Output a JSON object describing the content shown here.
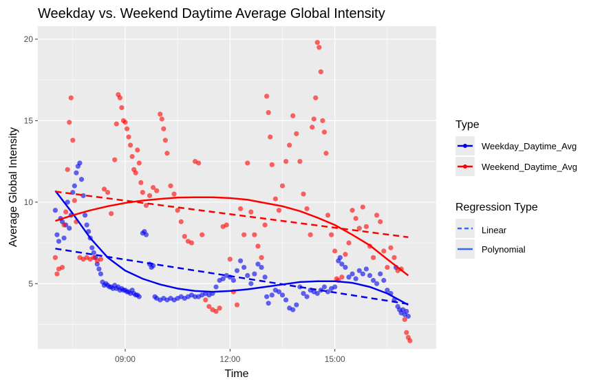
{
  "chart_data": {
    "type": "scatter",
    "title": "Weekday vs. Weekend Daytime Average Global Intensity",
    "xlabel": "Time",
    "ylabel": "Average Global Intensity",
    "x_unit": "hours",
    "xlim": [
      6.5,
      17.9
    ],
    "ylim": [
      1.0,
      20.8
    ],
    "x_ticks": [
      9,
      12,
      15
    ],
    "x_tick_labels": [
      "09:00",
      "12:00",
      "15:00"
    ],
    "y_ticks": [
      5,
      10,
      15,
      20
    ],
    "y_tick_labels": [
      "5",
      "10",
      "15",
      "20"
    ],
    "grid": true,
    "legend_placement": "right",
    "legend": {
      "type_title": "Type",
      "type_entries": [
        {
          "label": "Weekday_Daytime_Avg",
          "color": "#0000ee"
        },
        {
          "label": "Weekend_Daytime_Avg",
          "color": "#ff0000"
        }
      ],
      "regression_title": "Regression Type",
      "regression_entries": [
        {
          "label": "Linear",
          "style": "dashed"
        },
        {
          "label": "Polynomial",
          "style": "solid"
        }
      ]
    },
    "series": [
      {
        "name": "Weekday_Daytime_Avg",
        "color": "#0000ee",
        "points": [
          [
            7.0,
            9.5
          ],
          [
            7.05,
            8.0
          ],
          [
            7.1,
            7.6
          ],
          [
            7.15,
            9.0
          ],
          [
            7.2,
            8.8
          ],
          [
            7.25,
            7.8
          ],
          [
            7.3,
            8.6
          ],
          [
            7.35,
            10.0
          ],
          [
            7.4,
            8.4
          ],
          [
            7.45,
            9.2
          ],
          [
            7.5,
            10.6
          ],
          [
            7.55,
            11.0
          ],
          [
            7.6,
            11.8
          ],
          [
            7.65,
            12.2
          ],
          [
            7.7,
            12.4
          ],
          [
            7.75,
            11.4
          ],
          [
            7.8,
            10.4
          ],
          [
            7.85,
            9.2
          ],
          [
            7.9,
            8.6
          ],
          [
            7.95,
            8.2
          ],
          [
            8.0,
            7.8
          ],
          [
            8.05,
            7.2
          ],
          [
            8.1,
            6.9
          ],
          [
            8.15,
            6.6
          ],
          [
            8.2,
            6.2
          ],
          [
            8.25,
            5.9
          ],
          [
            8.3,
            5.6
          ],
          [
            8.35,
            5.1
          ],
          [
            8.4,
            4.9
          ],
          [
            8.45,
            5.0
          ],
          [
            8.5,
            4.9
          ],
          [
            8.55,
            4.8
          ],
          [
            8.6,
            4.8
          ],
          [
            8.65,
            4.7
          ],
          [
            8.7,
            4.9
          ],
          [
            8.75,
            4.7
          ],
          [
            8.8,
            4.8
          ],
          [
            8.85,
            4.6
          ],
          [
            8.9,
            4.7
          ],
          [
            8.95,
            4.6
          ],
          [
            9.0,
            4.6
          ],
          [
            9.05,
            4.5
          ],
          [
            9.1,
            4.5
          ],
          [
            9.15,
            4.4
          ],
          [
            9.2,
            4.6
          ],
          [
            9.25,
            4.4
          ],
          [
            9.3,
            4.3
          ],
          [
            9.35,
            4.3
          ],
          [
            9.4,
            4.2
          ],
          [
            9.5,
            8.1
          ],
          [
            9.55,
            8.2
          ],
          [
            9.6,
            8.0
          ],
          [
            9.7,
            6.2
          ],
          [
            9.75,
            6.0
          ],
          [
            9.8,
            6.1
          ],
          [
            9.85,
            4.2
          ],
          [
            9.9,
            4.1
          ],
          [
            10.0,
            4.0
          ],
          [
            10.1,
            4.1
          ],
          [
            10.2,
            4.0
          ],
          [
            10.3,
            4.1
          ],
          [
            10.4,
            4.0
          ],
          [
            10.5,
            4.1
          ],
          [
            10.6,
            4.2
          ],
          [
            10.7,
            4.1
          ],
          [
            10.8,
            4.2
          ],
          [
            10.9,
            4.3
          ],
          [
            11.0,
            4.2
          ],
          [
            11.1,
            4.2
          ],
          [
            11.2,
            4.3
          ],
          [
            11.3,
            4.4
          ],
          [
            11.4,
            4.3
          ],
          [
            11.5,
            4.4
          ],
          [
            11.6,
            4.8
          ],
          [
            11.7,
            5.2
          ],
          [
            11.8,
            5.3
          ],
          [
            11.9,
            5.5
          ],
          [
            12.0,
            5.4
          ],
          [
            12.1,
            5.2
          ],
          [
            12.2,
            5.8
          ],
          [
            12.3,
            6.4
          ],
          [
            12.4,
            6.0
          ],
          [
            12.5,
            5.5
          ],
          [
            12.6,
            5.0
          ],
          [
            12.7,
            5.6
          ],
          [
            12.8,
            6.2
          ],
          [
            12.9,
            6.0
          ],
          [
            13.0,
            5.4
          ],
          [
            13.05,
            4.2
          ],
          [
            13.1,
            3.8
          ],
          [
            13.2,
            4.3
          ],
          [
            13.3,
            4.6
          ],
          [
            13.4,
            4.5
          ],
          [
            13.5,
            4.3
          ],
          [
            13.6,
            4.0
          ],
          [
            13.7,
            3.5
          ],
          [
            13.8,
            3.4
          ],
          [
            13.9,
            3.7
          ],
          [
            14.0,
            4.8
          ],
          [
            14.1,
            4.4
          ],
          [
            14.2,
            4.2
          ],
          [
            14.3,
            4.6
          ],
          [
            14.4,
            4.5
          ],
          [
            14.5,
            4.4
          ],
          [
            14.6,
            4.6
          ],
          [
            14.7,
            4.8
          ],
          [
            14.8,
            4.5
          ],
          [
            14.9,
            4.7
          ],
          [
            15.0,
            4.8
          ],
          [
            15.1,
            6.4
          ],
          [
            15.15,
            6.6
          ],
          [
            15.2,
            6.2
          ],
          [
            15.3,
            6.0
          ],
          [
            15.4,
            5.4
          ],
          [
            15.5,
            5.6
          ],
          [
            15.6,
            5.3
          ],
          [
            15.7,
            5.8
          ],
          [
            15.8,
            5.6
          ],
          [
            15.9,
            5.9
          ],
          [
            16.0,
            5.5
          ],
          [
            16.1,
            5.2
          ],
          [
            16.2,
            5.0
          ],
          [
            16.3,
            5.6
          ],
          [
            16.4,
            5.2
          ],
          [
            16.5,
            4.6
          ],
          [
            16.6,
            4.4
          ],
          [
            16.7,
            4.0
          ],
          [
            16.75,
            6.0
          ],
          [
            16.8,
            3.6
          ],
          [
            16.85,
            3.4
          ],
          [
            16.9,
            3.2
          ],
          [
            16.95,
            3.4
          ],
          [
            17.0,
            3.1
          ],
          [
            17.05,
            3.3
          ],
          [
            17.1,
            3.0
          ]
        ],
        "linear_fit": [
          [
            7.0,
            7.15
          ],
          [
            17.1,
            3.75
          ]
        ],
        "poly_fit": [
          [
            7.0,
            10.7
          ],
          [
            7.5,
            9.3
          ],
          [
            8.0,
            7.8
          ],
          [
            8.5,
            6.6
          ],
          [
            9.0,
            5.8
          ],
          [
            9.5,
            5.3
          ],
          [
            10.0,
            4.95
          ],
          [
            10.5,
            4.7
          ],
          [
            11.0,
            4.55
          ],
          [
            11.5,
            4.5
          ],
          [
            12.0,
            4.55
          ],
          [
            12.5,
            4.65
          ],
          [
            13.0,
            4.8
          ],
          [
            13.5,
            4.95
          ],
          [
            14.0,
            5.1
          ],
          [
            14.5,
            5.15
          ],
          [
            15.0,
            5.15
          ],
          [
            15.5,
            5.05
          ],
          [
            16.0,
            4.8
          ],
          [
            16.5,
            4.4
          ],
          [
            17.1,
            3.7
          ]
        ]
      },
      {
        "name": "Weekend_Daytime_Avg",
        "color": "#ff0000",
        "points": [
          [
            7.0,
            6.6
          ],
          [
            7.05,
            5.6
          ],
          [
            7.1,
            5.9
          ],
          [
            7.2,
            6.0
          ],
          [
            7.25,
            8.6
          ],
          [
            7.3,
            9.4
          ],
          [
            7.35,
            12.0
          ],
          [
            7.4,
            14.9
          ],
          [
            7.45,
            16.4
          ],
          [
            7.5,
            13.8
          ],
          [
            7.55,
            10.1
          ],
          [
            7.6,
            8.8
          ],
          [
            7.7,
            6.6
          ],
          [
            7.8,
            6.5
          ],
          [
            7.9,
            6.6
          ],
          [
            8.0,
            6.5
          ],
          [
            8.1,
            6.6
          ],
          [
            8.2,
            6.4
          ],
          [
            8.3,
            6.5
          ],
          [
            8.4,
            10.8
          ],
          [
            8.5,
            10.6
          ],
          [
            8.6,
            9.3
          ],
          [
            8.7,
            12.6
          ],
          [
            8.75,
            14.8
          ],
          [
            8.8,
            16.6
          ],
          [
            8.85,
            16.4
          ],
          [
            8.9,
            15.8
          ],
          [
            8.95,
            15.0
          ],
          [
            9.0,
            14.9
          ],
          [
            9.05,
            14.5
          ],
          [
            9.1,
            14.0
          ],
          [
            9.15,
            13.5
          ],
          [
            9.2,
            12.8
          ],
          [
            9.25,
            12.0
          ],
          [
            9.3,
            11.8
          ],
          [
            9.35,
            13.2
          ],
          [
            9.4,
            12.4
          ],
          [
            9.45,
            11.2
          ],
          [
            9.5,
            10.6
          ],
          [
            9.6,
            9.8
          ],
          [
            9.7,
            10.4
          ],
          [
            9.8,
            10.9
          ],
          [
            9.9,
            10.7
          ],
          [
            10.0,
            15.4
          ],
          [
            10.05,
            15.1
          ],
          [
            10.1,
            14.5
          ],
          [
            10.15,
            13.8
          ],
          [
            10.2,
            13.0
          ],
          [
            10.3,
            11.0
          ],
          [
            10.4,
            10.5
          ],
          [
            10.5,
            9.5
          ],
          [
            10.6,
            8.8
          ],
          [
            10.7,
            7.9
          ],
          [
            10.8,
            7.6
          ],
          [
            10.9,
            7.5
          ],
          [
            11.0,
            12.5
          ],
          [
            11.1,
            12.4
          ],
          [
            11.2,
            8.0
          ],
          [
            11.3,
            4.0
          ],
          [
            11.4,
            3.6
          ],
          [
            11.5,
            3.4
          ],
          [
            11.6,
            3.3
          ],
          [
            11.7,
            3.5
          ],
          [
            11.8,
            8.5
          ],
          [
            11.9,
            8.6
          ],
          [
            12.0,
            6.5
          ],
          [
            12.1,
            4.5
          ],
          [
            12.2,
            3.7
          ],
          [
            12.3,
            9.6
          ],
          [
            12.4,
            8.0
          ],
          [
            12.5,
            12.4
          ],
          [
            12.6,
            9.4
          ],
          [
            12.7,
            8.0
          ],
          [
            12.8,
            7.3
          ],
          [
            12.9,
            6.6
          ],
          [
            13.0,
            8.6
          ],
          [
            13.05,
            16.5
          ],
          [
            13.1,
            15.5
          ],
          [
            13.15,
            14.0
          ],
          [
            13.2,
            12.3
          ],
          [
            13.3,
            10.2
          ],
          [
            13.4,
            9.5
          ],
          [
            13.5,
            11.0
          ],
          [
            13.6,
            12.5
          ],
          [
            13.7,
            13.5
          ],
          [
            13.8,
            15.3
          ],
          [
            13.9,
            14.2
          ],
          [
            14.0,
            12.5
          ],
          [
            14.1,
            10.5
          ],
          [
            14.2,
            9.6
          ],
          [
            14.3,
            8.0
          ],
          [
            14.35,
            14.6
          ],
          [
            14.4,
            15.1
          ],
          [
            14.45,
            16.4
          ],
          [
            14.5,
            19.8
          ],
          [
            14.55,
            19.5
          ],
          [
            14.6,
            18.0
          ],
          [
            14.65,
            15.0
          ],
          [
            14.7,
            14.3
          ],
          [
            14.75,
            13.0
          ],
          [
            14.8,
            9.2
          ],
          [
            14.9,
            8.0
          ],
          [
            15.0,
            7.0
          ],
          [
            15.05,
            5.3
          ],
          [
            15.1,
            5.2
          ],
          [
            15.2,
            5.4
          ],
          [
            15.3,
            6.8
          ],
          [
            15.4,
            7.5
          ],
          [
            15.5,
            9.5
          ],
          [
            15.6,
            9.0
          ],
          [
            15.7,
            8.4
          ],
          [
            15.8,
            9.7
          ],
          [
            15.9,
            8.5
          ],
          [
            16.0,
            7.3
          ],
          [
            16.1,
            6.6
          ],
          [
            16.2,
            9.2
          ],
          [
            16.3,
            8.8
          ],
          [
            16.4,
            7.0
          ],
          [
            16.5,
            6.0
          ],
          [
            16.6,
            7.2
          ],
          [
            16.7,
            6.6
          ],
          [
            16.8,
            5.8
          ],
          [
            16.9,
            5.9
          ],
          [
            17.0,
            2.8
          ],
          [
            17.05,
            2.0
          ],
          [
            17.1,
            1.7
          ],
          [
            17.15,
            1.5
          ]
        ],
        "linear_fit": [
          [
            7.0,
            10.65
          ],
          [
            17.1,
            7.85
          ]
        ],
        "poly_fit": [
          [
            7.0,
            8.85
          ],
          [
            7.5,
            9.2
          ],
          [
            8.0,
            9.5
          ],
          [
            8.5,
            9.75
          ],
          [
            9.0,
            9.95
          ],
          [
            9.5,
            10.1
          ],
          [
            10.0,
            10.2
          ],
          [
            10.5,
            10.28
          ],
          [
            11.0,
            10.3
          ],
          [
            11.5,
            10.3
          ],
          [
            12.0,
            10.25
          ],
          [
            12.5,
            10.15
          ],
          [
            13.0,
            9.95
          ],
          [
            13.5,
            9.75
          ],
          [
            14.0,
            9.45
          ],
          [
            14.5,
            9.05
          ],
          [
            15.0,
            8.6
          ],
          [
            15.5,
            8.0
          ],
          [
            16.0,
            7.35
          ],
          [
            16.5,
            6.5
          ],
          [
            17.1,
            5.5
          ]
        ]
      }
    ]
  }
}
